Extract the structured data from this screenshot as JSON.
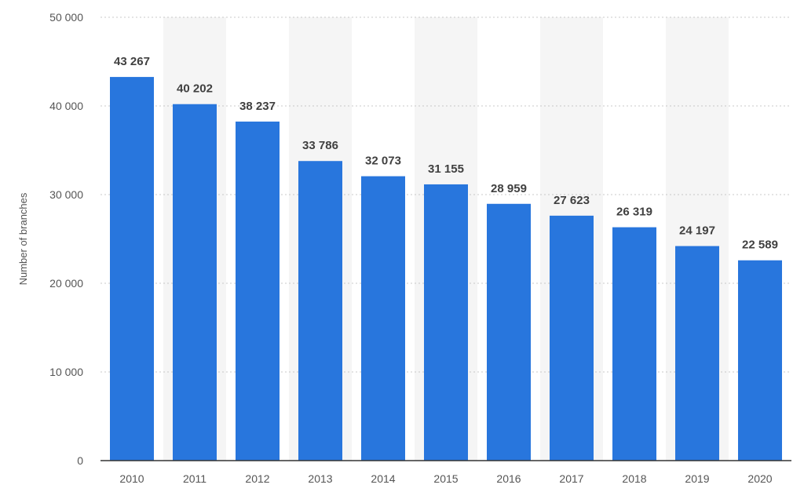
{
  "chart_data": {
    "type": "bar",
    "title": "",
    "xlabel": "",
    "ylabel": "Number of branches",
    "categories": [
      "2010",
      "2011",
      "2012",
      "2013",
      "2014",
      "2015",
      "2016",
      "2017",
      "2018",
      "2019",
      "2020"
    ],
    "values": [
      43267,
      40202,
      38237,
      33786,
      32073,
      31155,
      28959,
      27623,
      26319,
      24197,
      22589
    ],
    "value_labels": [
      "43 267",
      "40 202",
      "38 237",
      "33 786",
      "32 073",
      "31 155",
      "28 959",
      "27 623",
      "26 319",
      "24 197",
      "22 589"
    ],
    "ylim": [
      0,
      50000
    ],
    "yticks": [
      0,
      10000,
      20000,
      30000,
      40000,
      50000
    ],
    "ytick_labels": [
      "0",
      "10 000",
      "20 000",
      "30 000",
      "40 000",
      "50 000"
    ],
    "grid": true,
    "legend": "none",
    "bar_color": "#2876dd",
    "alt_band_color": "#f5f5f5"
  }
}
